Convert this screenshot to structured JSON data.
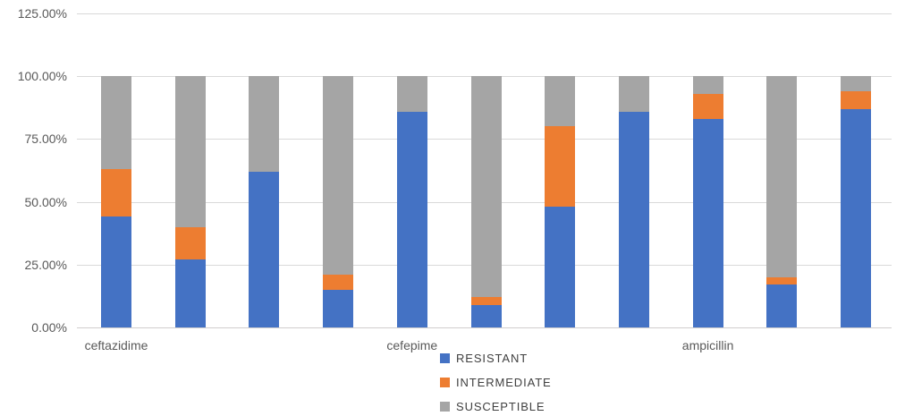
{
  "chart_data": {
    "type": "bar",
    "stacked": true,
    "percent_stacked": true,
    "title": "",
    "xlabel": "",
    "ylabel": "",
    "grid": true,
    "n_bars": 11,
    "y_axis": {
      "min": 0,
      "max": 125,
      "step": 25,
      "tick_labels": [
        "0.00%",
        "25.00%",
        "50.00%",
        "75.00%",
        "100.00%",
        "125.00%"
      ]
    },
    "x_axis": {
      "labels": [
        {
          "bar_index": 0,
          "text": "ceftazidime"
        },
        {
          "bar_index": 4,
          "text": "cefepime"
        },
        {
          "bar_index": 8,
          "text": "ampicillin"
        }
      ]
    },
    "series": [
      {
        "name": "RESISTANT",
        "color": "#4472C4",
        "values": [
          44,
          27,
          62,
          15,
          86,
          9,
          48,
          86,
          83,
          17,
          87
        ]
      },
      {
        "name": "INTERMEDIATE",
        "color": "#ED7D31",
        "values": [
          19,
          13,
          0,
          6,
          0,
          3,
          32,
          0,
          10,
          3,
          7
        ]
      },
      {
        "name": "SUSCEPTIBLE",
        "color": "#A5A5A5",
        "values": [
          37,
          60,
          38,
          79,
          14,
          88,
          20,
          14,
          7,
          80,
          6
        ]
      }
    ],
    "legend": {
      "position": "bottom-center",
      "entries": [
        {
          "label": "RESISTANT",
          "color": "#4472C4"
        },
        {
          "label": "INTERMEDIATE",
          "color": "#ED7D31"
        },
        {
          "label": "SUSCEPTIBLE",
          "color": "#A5A5A5"
        }
      ]
    },
    "colors": {
      "gridline": "#D9D9D9",
      "axis_line": "#D0CECE",
      "tick_text": "#595959",
      "legend_text": "#404040",
      "background": "#FFFFFF"
    }
  }
}
